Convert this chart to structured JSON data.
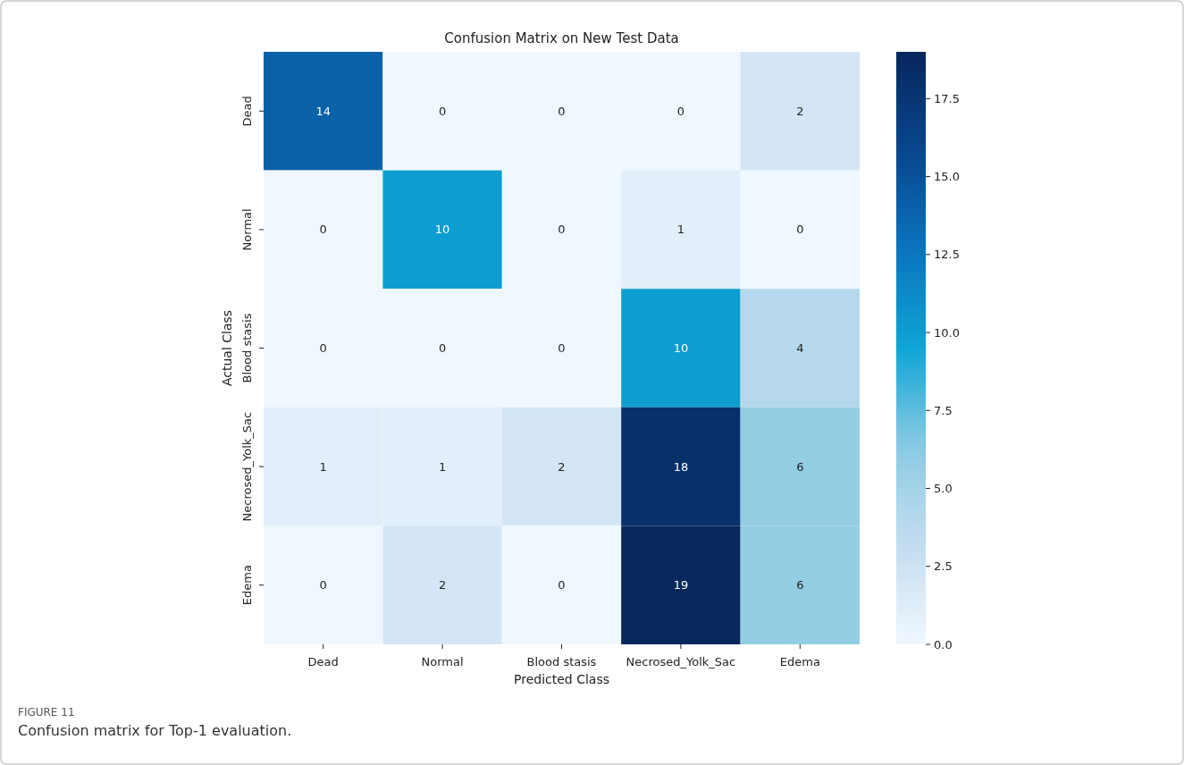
{
  "chart_data": {
    "type": "heatmap",
    "title": "Confusion Matrix on New Test Data",
    "xlabel": "Predicted Class",
    "ylabel": "Actual Class",
    "categories": [
      "Dead",
      "Normal",
      "Blood stasis",
      "Necrosed_Yolk_Sac",
      "Edema"
    ],
    "y_categories": [
      "Dead",
      "Normal",
      "Blood stasis",
      "Necrosed_Yolk_Sac",
      "Edema"
    ],
    "cells": [
      [
        14,
        0,
        0,
        0,
        2
      ],
      [
        0,
        10,
        0,
        1,
        0
      ],
      [
        0,
        0,
        0,
        10,
        4
      ],
      [
        1,
        1,
        2,
        18,
        6
      ],
      [
        0,
        2,
        0,
        19,
        6
      ]
    ],
    "data_labels": true,
    "clim": [
      0,
      19
    ],
    "cticks": [
      {
        "value": 0,
        "label": "0.0"
      },
      {
        "value": 2.5,
        "label": "2.5"
      },
      {
        "value": 5,
        "label": "5.0"
      },
      {
        "value": 7.5,
        "label": "7.5"
      },
      {
        "value": 10,
        "label": "10.0"
      },
      {
        "value": 12.5,
        "label": "12.5"
      },
      {
        "value": 15,
        "label": "15.0"
      },
      {
        "value": 17.5,
        "label": "17.5"
      }
    ],
    "annotations": [
      "FIGURE 11",
      "Confusion matrix for Top-1 evaluation."
    ]
  }
}
